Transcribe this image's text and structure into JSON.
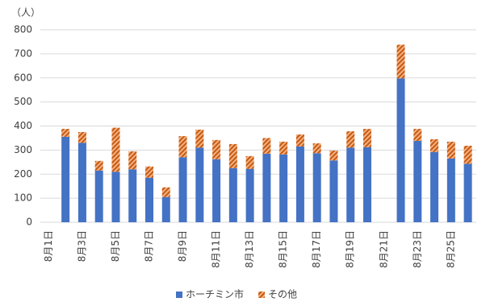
{
  "chart_data": {
    "type": "stacked_bar",
    "y_label": "（人）",
    "categories": [
      "8月1日",
      null,
      "8月3日",
      null,
      "8月5日",
      null,
      "8月7日",
      null,
      "8月9日",
      null,
      "8月11日",
      null,
      "8月13日",
      null,
      "8月15日",
      null,
      "8月17日",
      null,
      "8月19日",
      null,
      "8月21日",
      null,
      "8月23日",
      null,
      "8月25日",
      null
    ],
    "series": [
      {
        "name": "ホーチミン市",
        "color": "#4472c4",
        "values": [
          null,
          355,
          330,
          215,
          210,
          220,
          185,
          105,
          270,
          310,
          262,
          225,
          222,
          285,
          282,
          315,
          287,
          257,
          310,
          312,
          null,
          598,
          338,
          292,
          265,
          243
        ]
      },
      {
        "name": "その他",
        "color": "#c55a11",
        "values": [
          null,
          33,
          45,
          40,
          183,
          75,
          47,
          40,
          88,
          75,
          80,
          100,
          53,
          65,
          53,
          50,
          41,
          41,
          68,
          76,
          null,
          140,
          50,
          53,
          70,
          75
        ]
      }
    ],
    "ylim": [
      0,
      800
    ],
    "yticks": [
      0,
      100,
      200,
      300,
      400,
      500,
      600,
      700,
      800
    ],
    "grid": true,
    "legend": "bottom"
  }
}
